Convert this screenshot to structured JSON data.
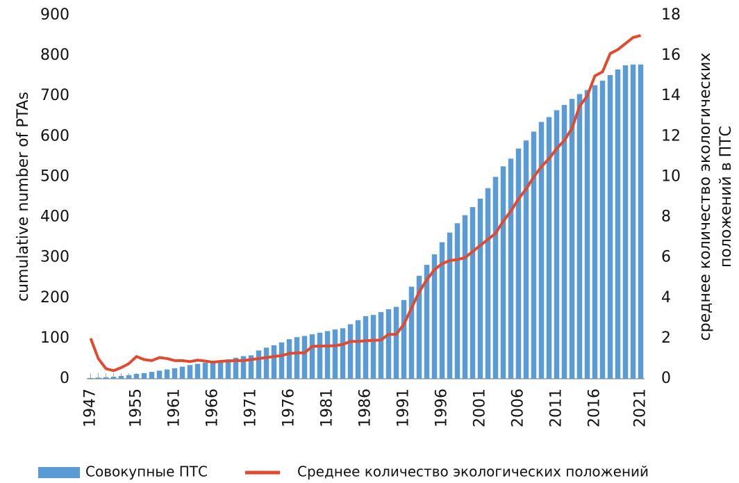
{
  "chart_data": {
    "type": "bar_line",
    "ylabel": "cumulative number of PTAs",
    "y2label": [
      "среднее количество экологических",
      "положений в ПТС"
    ],
    "categories": [
      "1947",
      null,
      null,
      null,
      null,
      null,
      "1955",
      null,
      null,
      null,
      null,
      "1961",
      null,
      null,
      null,
      null,
      "1966",
      null,
      null,
      null,
      null,
      "1971",
      null,
      null,
      null,
      null,
      "1976",
      null,
      null,
      null,
      null,
      "1981",
      null,
      null,
      null,
      null,
      "1986",
      null,
      null,
      null,
      null,
      "1991",
      null,
      null,
      null,
      null,
      "1996",
      null,
      null,
      null,
      null,
      "2001",
      null,
      null,
      null,
      null,
      "2006",
      null,
      null,
      null,
      null,
      "2011",
      null,
      null,
      null,
      null,
      "2016",
      null,
      null,
      null,
      null,
      null,
      "2021"
    ],
    "series": [
      {
        "name": "Совокупные ПТС",
        "kind": "bar",
        "color": "#5b9bd5",
        "axis": "y",
        "values": [
          2,
          3,
          4,
          5,
          7,
          9,
          12,
          14,
          17,
          20,
          23,
          26,
          30,
          34,
          37,
          40,
          43,
          45,
          48,
          52,
          56,
          58,
          70,
          77,
          83,
          90,
          98,
          103,
          106,
          110,
          114,
          118,
          122,
          125,
          135,
          145,
          155,
          158,
          165,
          172,
          178,
          195,
          228,
          255,
          282,
          308,
          338,
          362,
          385,
          405,
          425,
          446,
          472,
          500,
          526,
          545,
          570,
          590,
          612,
          636,
          648,
          665,
          678,
          693,
          705,
          715,
          727,
          738,
          752,
          766,
          776,
          778,
          778
        ]
      },
      {
        "name": "Среднее количество экологических положений",
        "kind": "line",
        "color": "#e04a2f",
        "axis": "y2",
        "values": [
          2.0,
          1.0,
          0.5,
          0.4,
          0.55,
          0.75,
          1.1,
          0.95,
          0.9,
          1.05,
          1.0,
          0.9,
          0.9,
          0.85,
          0.92,
          0.88,
          0.82,
          0.86,
          0.88,
          0.9,
          0.9,
          0.95,
          1.0,
          1.05,
          1.1,
          1.15,
          1.25,
          1.28,
          1.28,
          1.6,
          1.62,
          1.62,
          1.64,
          1.7,
          1.85,
          1.85,
          1.88,
          1.9,
          1.92,
          2.2,
          2.2,
          2.7,
          3.5,
          4.3,
          4.9,
          5.4,
          5.7,
          5.85,
          5.9,
          6.0,
          6.3,
          6.6,
          6.9,
          7.2,
          7.8,
          8.3,
          8.9,
          9.4,
          10.0,
          10.5,
          10.9,
          11.4,
          11.8,
          12.4,
          13.5,
          14.0,
          15.0,
          15.2,
          16.1,
          16.3,
          16.6,
          16.9,
          17.0
        ]
      }
    ],
    "ylim": [
      0,
      900
    ],
    "yticks": [
      0,
      100,
      200,
      300,
      400,
      500,
      600,
      700,
      800,
      900
    ],
    "y2lim": [
      0,
      18
    ],
    "y2ticks": [
      0,
      2,
      4,
      6,
      8,
      10,
      12,
      14,
      16,
      18
    ],
    "legend": "bottom"
  }
}
